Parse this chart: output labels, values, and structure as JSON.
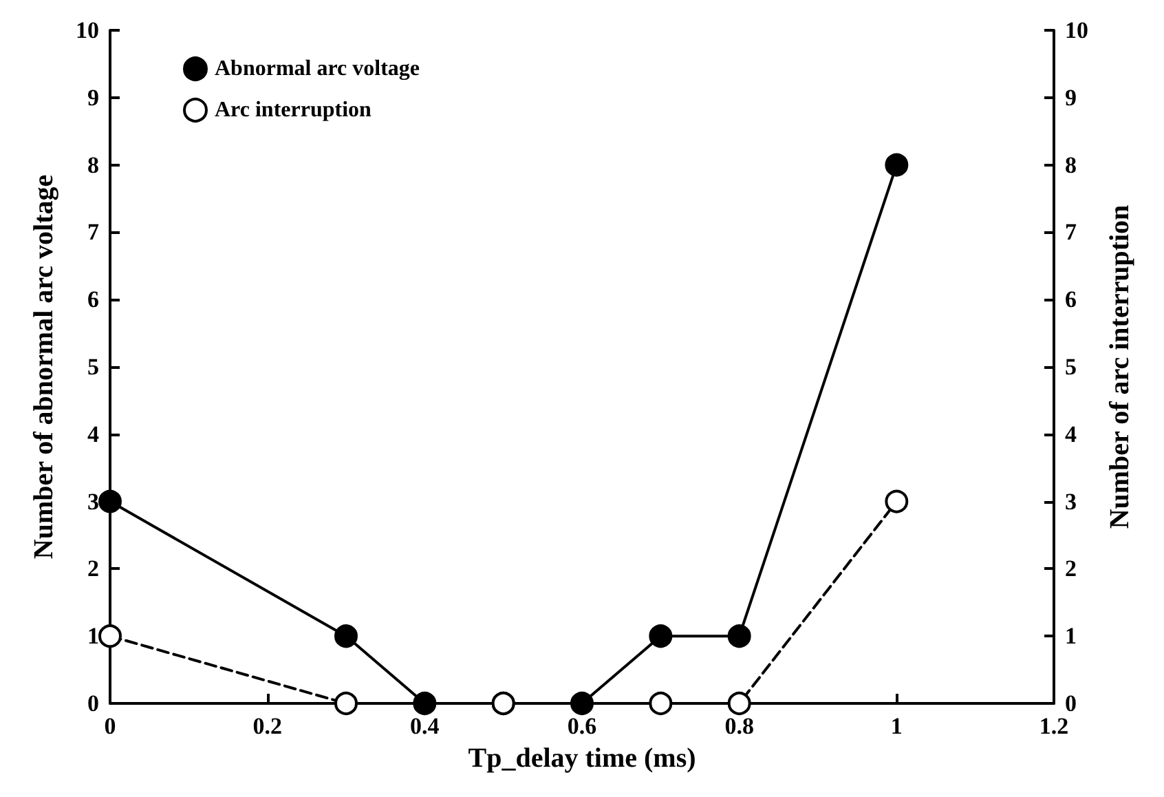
{
  "chart_data": {
    "type": "line",
    "xlabel": "Tp_delay time (ms)",
    "ylabel": "Number of abnormal arc voltage",
    "y2label": "Number of arc interruption",
    "xlim": [
      0,
      1.2
    ],
    "xticks": [
      0,
      0.2,
      0.4,
      0.6,
      0.8,
      1,
      1.2
    ],
    "ylim": [
      0,
      10
    ],
    "yticks": [
      0,
      1,
      2,
      3,
      4,
      5,
      6,
      7,
      8,
      9,
      10
    ],
    "y2lim": [
      0,
      10
    ],
    "y2ticks": [
      0,
      1,
      2,
      3,
      4,
      5,
      6,
      7,
      8,
      9,
      10
    ],
    "grid": false,
    "legend": "top left",
    "marker": "circle",
    "series": [
      {
        "name": "Abnormal arc voltage",
        "color": "#000000",
        "line_style": "solid",
        "x": [
          0,
          0.3,
          0.4,
          0.5,
          0.6,
          0.7,
          0.8,
          1
        ],
        "values": [
          3,
          1,
          0,
          0,
          0,
          1,
          1,
          8
        ]
      },
      {
        "name": "Arc interruption",
        "color": "#000000",
        "line_style": "dashed",
        "axis": "y2",
        "x": [
          0,
          0.3,
          0.5,
          0.7,
          0.8,
          1
        ],
        "values": [
          1,
          0,
          0,
          0,
          0,
          3
        ]
      }
    ]
  }
}
